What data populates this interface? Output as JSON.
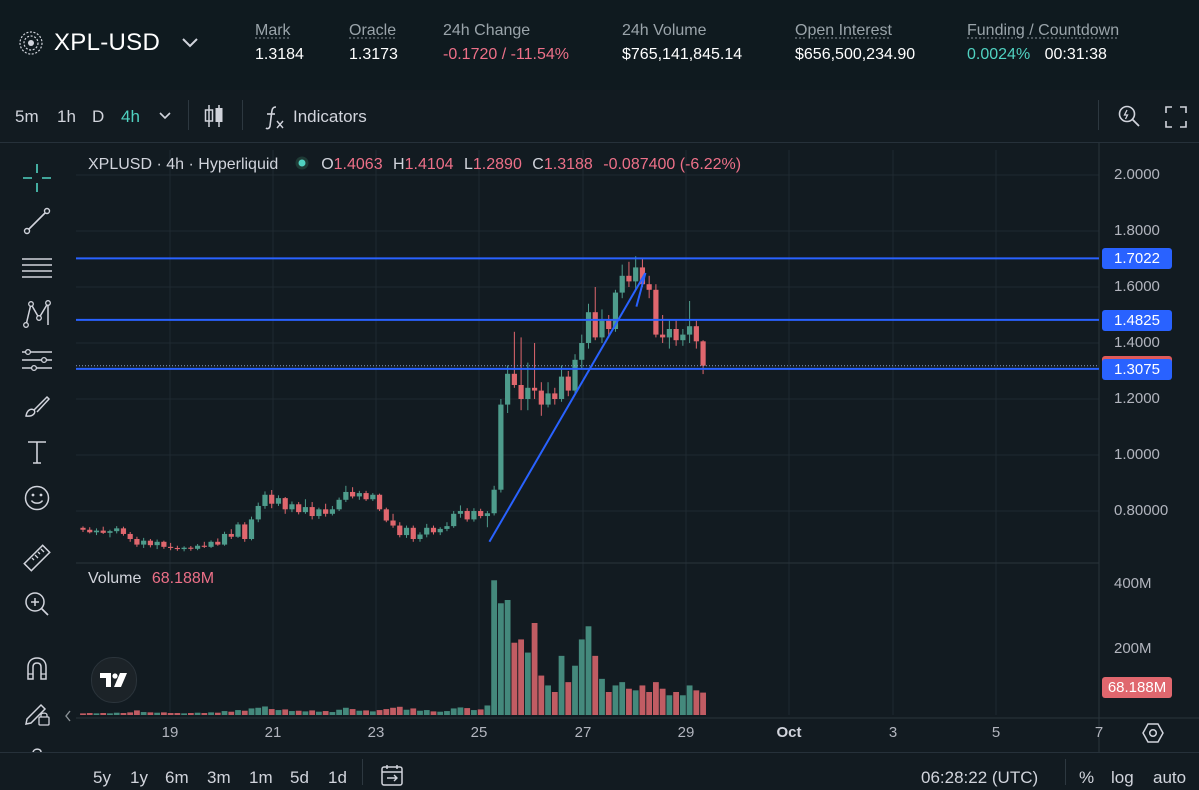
{
  "header": {
    "symbol": "XPL-USD",
    "stats": [
      {
        "label": "Mark",
        "value": "1.3184"
      },
      {
        "label": "Oracle",
        "value": "1.3173"
      },
      {
        "label": "24h Change",
        "value": "-0.1720 / -11.54%"
      },
      {
        "label": "24h Volume",
        "value": "$765,141,845.14"
      },
      {
        "label": "Open Interest",
        "value": "$656,500,234.90"
      },
      {
        "label": "Funding / Countdown",
        "funding": "0.0024%",
        "countdown": "00:31:38"
      }
    ]
  },
  "toolbar": {
    "timeframes": [
      "5m",
      "1h",
      "D",
      "4h"
    ],
    "active_timeframe": "4h",
    "indicators_label": "Indicators"
  },
  "legend": {
    "title": "XPLUSD · 4h · Hyperliquid",
    "o_label": "O",
    "o_value": "1.4063",
    "h_label": "H",
    "h_value": "1.4104",
    "l_label": "L",
    "l_value": "1.2890",
    "c_label": "C",
    "c_value": "1.3188",
    "change": "-0.087400 (-6.22%)"
  },
  "volume_legend": {
    "label": "Volume",
    "value": "68.188M"
  },
  "price_axis": {
    "ticks": [
      "2.0000",
      "1.8000",
      "1.6000",
      "1.4000",
      "1.2000",
      "1.0000",
      "0.80000"
    ],
    "tick_values": [
      2.0,
      1.8,
      1.6,
      1.4,
      1.2,
      1.0,
      0.8
    ],
    "levels": [
      {
        "label": "1.7022",
        "value": 1.7022,
        "color": "#2962ff"
      },
      {
        "label": "1.4825",
        "value": 1.4825,
        "color": "#2962ff"
      },
      {
        "label": "1.3188",
        "value": 1.3188,
        "color": "#e05a5a"
      },
      {
        "label": "1.3075",
        "value": 1.3075,
        "color": "#2962ff"
      }
    ]
  },
  "volume_axis": {
    "ticks": [
      "400M",
      "200M"
    ],
    "tick_values": [
      400,
      200
    ],
    "last_label": "68.188M"
  },
  "time_axis": [
    "19",
    "21",
    "23",
    "25",
    "27",
    "29",
    "Oct",
    "3",
    "5",
    "7"
  ],
  "bottom": {
    "ranges": [
      "5y",
      "1y",
      "6m",
      "3m",
      "1m",
      "5d",
      "1d"
    ],
    "clock": "06:28:22 (UTC)",
    "options": [
      "%",
      "log",
      "auto"
    ]
  },
  "colors": {
    "up": "#4e9c8c",
    "down": "#e0676e",
    "line": "#2962ff",
    "accent": "#50d2c1"
  },
  "chart_data": {
    "type": "candlestick",
    "interval": "4h",
    "price_range": [
      0.62,
      2.06
    ],
    "volume_unit": "M",
    "volume_range": [
      0,
      450
    ],
    "candles": [
      {
        "o": 0.74,
        "h": 0.745,
        "l": 0.725,
        "c": 0.733,
        "v": 5
      },
      {
        "o": 0.733,
        "h": 0.742,
        "l": 0.72,
        "c": 0.724,
        "v": 6
      },
      {
        "o": 0.724,
        "h": 0.738,
        "l": 0.714,
        "c": 0.73,
        "v": 5
      },
      {
        "o": 0.73,
        "h": 0.744,
        "l": 0.718,
        "c": 0.722,
        "v": 6
      },
      {
        "o": 0.722,
        "h": 0.733,
        "l": 0.706,
        "c": 0.728,
        "v": 5
      },
      {
        "o": 0.728,
        "h": 0.746,
        "l": 0.72,
        "c": 0.738,
        "v": 7
      },
      {
        "o": 0.738,
        "h": 0.744,
        "l": 0.712,
        "c": 0.718,
        "v": 6
      },
      {
        "o": 0.718,
        "h": 0.725,
        "l": 0.69,
        "c": 0.7,
        "v": 8
      },
      {
        "o": 0.7,
        "h": 0.708,
        "l": 0.672,
        "c": 0.68,
        "v": 14
      },
      {
        "o": 0.68,
        "h": 0.704,
        "l": 0.668,
        "c": 0.694,
        "v": 9
      },
      {
        "o": 0.694,
        "h": 0.7,
        "l": 0.67,
        "c": 0.678,
        "v": 8
      },
      {
        "o": 0.678,
        "h": 0.698,
        "l": 0.664,
        "c": 0.69,
        "v": 7
      },
      {
        "o": 0.69,
        "h": 0.694,
        "l": 0.665,
        "c": 0.672,
        "v": 8
      },
      {
        "o": 0.672,
        "h": 0.686,
        "l": 0.66,
        "c": 0.668,
        "v": 6
      },
      {
        "o": 0.668,
        "h": 0.676,
        "l": 0.658,
        "c": 0.664,
        "v": 6
      },
      {
        "o": 0.664,
        "h": 0.674,
        "l": 0.656,
        "c": 0.669,
        "v": 5
      },
      {
        "o": 0.669,
        "h": 0.675,
        "l": 0.658,
        "c": 0.665,
        "v": 6
      },
      {
        "o": 0.665,
        "h": 0.682,
        "l": 0.66,
        "c": 0.676,
        "v": 7
      },
      {
        "o": 0.676,
        "h": 0.69,
        "l": 0.668,
        "c": 0.672,
        "v": 6
      },
      {
        "o": 0.672,
        "h": 0.695,
        "l": 0.668,
        "c": 0.69,
        "v": 8
      },
      {
        "o": 0.69,
        "h": 0.702,
        "l": 0.676,
        "c": 0.68,
        "v": 7
      },
      {
        "o": 0.68,
        "h": 0.726,
        "l": 0.676,
        "c": 0.718,
        "v": 12
      },
      {
        "o": 0.718,
        "h": 0.735,
        "l": 0.7,
        "c": 0.708,
        "v": 10
      },
      {
        "o": 0.708,
        "h": 0.76,
        "l": 0.704,
        "c": 0.752,
        "v": 15
      },
      {
        "o": 0.752,
        "h": 0.76,
        "l": 0.69,
        "c": 0.7,
        "v": 13
      },
      {
        "o": 0.7,
        "h": 0.78,
        "l": 0.695,
        "c": 0.77,
        "v": 20
      },
      {
        "o": 0.77,
        "h": 0.83,
        "l": 0.76,
        "c": 0.818,
        "v": 22
      },
      {
        "o": 0.818,
        "h": 0.87,
        "l": 0.808,
        "c": 0.858,
        "v": 26
      },
      {
        "o": 0.858,
        "h": 0.875,
        "l": 0.81,
        "c": 0.826,
        "v": 18
      },
      {
        "o": 0.826,
        "h": 0.856,
        "l": 0.818,
        "c": 0.846,
        "v": 15
      },
      {
        "o": 0.846,
        "h": 0.85,
        "l": 0.79,
        "c": 0.806,
        "v": 17
      },
      {
        "o": 0.806,
        "h": 0.834,
        "l": 0.796,
        "c": 0.824,
        "v": 12
      },
      {
        "o": 0.824,
        "h": 0.832,
        "l": 0.788,
        "c": 0.796,
        "v": 13
      },
      {
        "o": 0.796,
        "h": 0.842,
        "l": 0.79,
        "c": 0.814,
        "v": 11
      },
      {
        "o": 0.814,
        "h": 0.832,
        "l": 0.77,
        "c": 0.782,
        "v": 14
      },
      {
        "o": 0.782,
        "h": 0.812,
        "l": 0.772,
        "c": 0.806,
        "v": 10
      },
      {
        "o": 0.806,
        "h": 0.826,
        "l": 0.78,
        "c": 0.79,
        "v": 12
      },
      {
        "o": 0.79,
        "h": 0.818,
        "l": 0.784,
        "c": 0.806,
        "v": 9
      },
      {
        "o": 0.806,
        "h": 0.848,
        "l": 0.8,
        "c": 0.84,
        "v": 16
      },
      {
        "o": 0.84,
        "h": 0.89,
        "l": 0.832,
        "c": 0.868,
        "v": 22
      },
      {
        "o": 0.868,
        "h": 0.885,
        "l": 0.845,
        "c": 0.852,
        "v": 18
      },
      {
        "o": 0.852,
        "h": 0.872,
        "l": 0.84,
        "c": 0.864,
        "v": 13
      },
      {
        "o": 0.864,
        "h": 0.872,
        "l": 0.836,
        "c": 0.842,
        "v": 14
      },
      {
        "o": 0.842,
        "h": 0.864,
        "l": 0.836,
        "c": 0.858,
        "v": 11
      },
      {
        "o": 0.858,
        "h": 0.862,
        "l": 0.8,
        "c": 0.806,
        "v": 15
      },
      {
        "o": 0.806,
        "h": 0.812,
        "l": 0.76,
        "c": 0.766,
        "v": 18
      },
      {
        "o": 0.766,
        "h": 0.79,
        "l": 0.74,
        "c": 0.748,
        "v": 22
      },
      {
        "o": 0.748,
        "h": 0.76,
        "l": 0.706,
        "c": 0.714,
        "v": 25
      },
      {
        "o": 0.714,
        "h": 0.748,
        "l": 0.704,
        "c": 0.74,
        "v": 16
      },
      {
        "o": 0.74,
        "h": 0.748,
        "l": 0.69,
        "c": 0.7,
        "v": 20
      },
      {
        "o": 0.7,
        "h": 0.724,
        "l": 0.69,
        "c": 0.716,
        "v": 13
      },
      {
        "o": 0.716,
        "h": 0.754,
        "l": 0.706,
        "c": 0.74,
        "v": 15
      },
      {
        "o": 0.74,
        "h": 0.748,
        "l": 0.716,
        "c": 0.724,
        "v": 11
      },
      {
        "o": 0.724,
        "h": 0.742,
        "l": 0.714,
        "c": 0.736,
        "v": 10
      },
      {
        "o": 0.736,
        "h": 0.76,
        "l": 0.728,
        "c": 0.746,
        "v": 12
      },
      {
        "o": 0.746,
        "h": 0.8,
        "l": 0.74,
        "c": 0.79,
        "v": 20
      },
      {
        "o": 0.79,
        "h": 0.82,
        "l": 0.776,
        "c": 0.8,
        "v": 23
      },
      {
        "o": 0.8,
        "h": 0.81,
        "l": 0.762,
        "c": 0.77,
        "v": 21
      },
      {
        "o": 0.77,
        "h": 0.81,
        "l": 0.762,
        "c": 0.8,
        "v": 15
      },
      {
        "o": 0.8,
        "h": 0.808,
        "l": 0.774,
        "c": 0.782,
        "v": 17
      },
      {
        "o": 0.782,
        "h": 0.8,
        "l": 0.742,
        "c": 0.792,
        "v": 29
      },
      {
        "o": 0.792,
        "h": 0.89,
        "l": 0.784,
        "c": 0.876,
        "v": 410
      },
      {
        "o": 0.876,
        "h": 1.2,
        "l": 0.866,
        "c": 1.18,
        "v": 340
      },
      {
        "o": 1.18,
        "h": 1.32,
        "l": 1.15,
        "c": 1.29,
        "v": 350
      },
      {
        "o": 1.29,
        "h": 1.44,
        "l": 1.24,
        "c": 1.25,
        "v": 220
      },
      {
        "o": 1.25,
        "h": 1.42,
        "l": 1.16,
        "c": 1.2,
        "v": 230
      },
      {
        "o": 1.2,
        "h": 1.33,
        "l": 1.16,
        "c": 1.24,
        "v": 190
      },
      {
        "o": 1.24,
        "h": 1.4,
        "l": 1.2,
        "c": 1.23,
        "v": 280
      },
      {
        "o": 1.23,
        "h": 1.26,
        "l": 1.14,
        "c": 1.18,
        "v": 120
      },
      {
        "o": 1.18,
        "h": 1.26,
        "l": 1.17,
        "c": 1.22,
        "v": 90
      },
      {
        "o": 1.22,
        "h": 1.24,
        "l": 1.18,
        "c": 1.2,
        "v": 70
      },
      {
        "o": 1.2,
        "h": 1.32,
        "l": 1.19,
        "c": 1.28,
        "v": 180
      },
      {
        "o": 1.28,
        "h": 1.3,
        "l": 1.21,
        "c": 1.23,
        "v": 100
      },
      {
        "o": 1.23,
        "h": 1.36,
        "l": 1.22,
        "c": 1.34,
        "v": 150
      },
      {
        "o": 1.34,
        "h": 1.43,
        "l": 1.31,
        "c": 1.4,
        "v": 230
      },
      {
        "o": 1.4,
        "h": 1.54,
        "l": 1.38,
        "c": 1.51,
        "v": 270
      },
      {
        "o": 1.51,
        "h": 1.6,
        "l": 1.41,
        "c": 1.42,
        "v": 180
      },
      {
        "o": 1.42,
        "h": 1.52,
        "l": 1.4,
        "c": 1.48,
        "v": 110
      },
      {
        "o": 1.48,
        "h": 1.5,
        "l": 1.42,
        "c": 1.45,
        "v": 70
      },
      {
        "o": 1.45,
        "h": 1.59,
        "l": 1.44,
        "c": 1.58,
        "v": 90
      },
      {
        "o": 1.58,
        "h": 1.68,
        "l": 1.56,
        "c": 1.64,
        "v": 100
      },
      {
        "o": 1.64,
        "h": 1.69,
        "l": 1.6,
        "c": 1.62,
        "v": 80
      },
      {
        "o": 1.62,
        "h": 1.71,
        "l": 1.59,
        "c": 1.67,
        "v": 75
      },
      {
        "o": 1.67,
        "h": 1.7,
        "l": 1.6,
        "c": 1.61,
        "v": 90
      },
      {
        "o": 1.61,
        "h": 1.64,
        "l": 1.56,
        "c": 1.59,
        "v": 70
      },
      {
        "o": 1.59,
        "h": 1.61,
        "l": 1.42,
        "c": 1.43,
        "v": 100
      },
      {
        "o": 1.43,
        "h": 1.5,
        "l": 1.4,
        "c": 1.42,
        "v": 80
      },
      {
        "o": 1.42,
        "h": 1.48,
        "l": 1.38,
        "c": 1.45,
        "v": 60
      },
      {
        "o": 1.45,
        "h": 1.48,
        "l": 1.39,
        "c": 1.41,
        "v": 70
      },
      {
        "o": 1.41,
        "h": 1.45,
        "l": 1.39,
        "c": 1.43,
        "v": 60
      },
      {
        "o": 1.43,
        "h": 1.55,
        "l": 1.4,
        "c": 1.46,
        "v": 90
      },
      {
        "o": 1.46,
        "h": 1.48,
        "l": 1.38,
        "c": 1.406,
        "v": 75
      },
      {
        "o": 1.406,
        "h": 1.41,
        "l": 1.289,
        "c": 1.319,
        "v": 68.188
      }
    ],
    "trendline": {
      "from": {
        "candle": 60,
        "price": 0.69
      },
      "to": {
        "candle": 83,
        "price": 1.65
      }
    }
  }
}
